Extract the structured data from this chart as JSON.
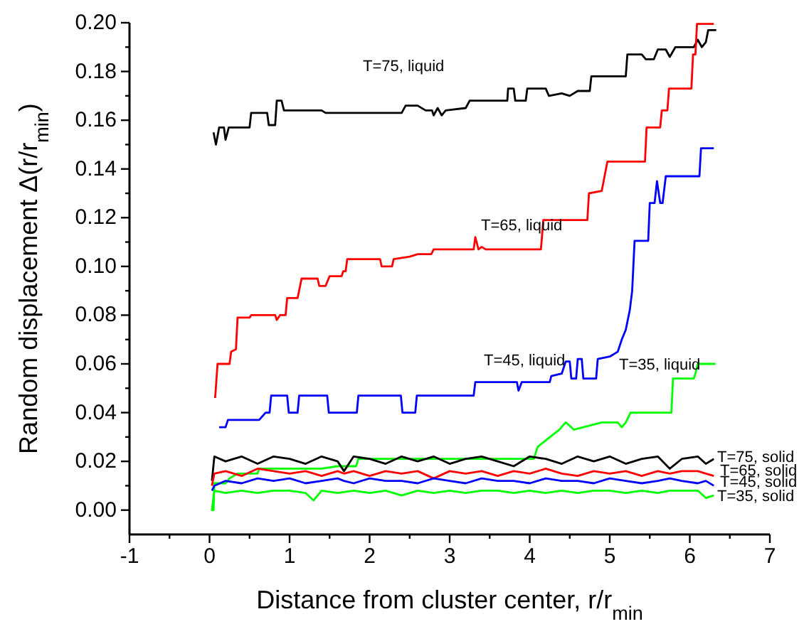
{
  "chart_data": {
    "type": "line",
    "xlabel": "Distance from cluster center, r/r$_{min}$",
    "ylabel": "Random displacement Δ(r/r$_{min}$)",
    "xlim": [
      -1,
      7
    ],
    "ylim": [
      -0.01,
      0.2
    ],
    "xticks": [
      -1,
      {
        "value": -0.5,
        "label": null
      },
      0,
      {
        "value": 0.5,
        "label": null
      },
      1,
      {
        "value": 1.5,
        "label": null
      },
      2,
      {
        "value": 2.5,
        "label": null
      },
      3,
      {
        "value": 3.5,
        "label": null
      },
      4,
      {
        "value": 4.5,
        "label": null
      },
      5,
      {
        "value": 5.5,
        "label": null
      },
      6,
      {
        "value": 6.5,
        "label": null
      },
      7
    ],
    "yticks": [
      {
        "value": 0,
        "label": "0.00"
      },
      {
        "value": 0.01,
        "label": null
      },
      {
        "value": 0.02,
        "label": "0.02"
      },
      {
        "value": 0.03,
        "label": null
      },
      {
        "value": 0.04,
        "label": "0.04"
      },
      {
        "value": 0.05,
        "label": null
      },
      {
        "value": 0.06,
        "label": "0.06"
      },
      {
        "value": 0.07,
        "label": null
      },
      {
        "value": 0.08,
        "label": "0.08"
      },
      {
        "value": 0.09,
        "label": null
      },
      {
        "value": 0.1,
        "label": "0.10"
      },
      {
        "value": 0.11,
        "label": null
      },
      {
        "value": 0.12,
        "label": "0.12"
      },
      {
        "value": 0.13,
        "label": null
      },
      {
        "value": 0.14,
        "label": "0.14"
      },
      {
        "value": 0.15,
        "label": null
      },
      {
        "value": 0.16,
        "label": "0.16"
      },
      {
        "value": 0.17,
        "label": null
      },
      {
        "value": 0.18,
        "label": "0.18"
      },
      {
        "value": 0.19,
        "label": null
      },
      {
        "value": 0.2,
        "label": "0.20"
      }
    ],
    "grid": false,
    "marker": "none",
    "line_style": "solid",
    "series": [
      {
        "name": "T=75, liquid",
        "color": "#000000",
        "x": [
          0.05,
          0.08,
          0.12,
          0.18,
          0.2,
          0.24,
          0.5,
          0.52,
          0.72,
          0.74,
          0.82,
          0.84,
          0.9,
          0.93,
          1.4,
          1.45,
          2.4,
          2.45,
          2.6,
          2.7,
          2.78,
          2.8,
          2.85,
          2.9,
          2.95,
          3.2,
          3.25,
          3.72,
          3.73,
          3.8,
          3.82,
          3.95,
          3.97,
          4.2,
          4.24,
          4.4,
          4.5,
          4.6,
          4.75,
          4.77,
          5.2,
          5.22,
          5.4,
          5.45,
          5.55,
          5.6,
          5.7,
          5.75,
          5.82,
          6.05,
          6.1,
          6.15,
          6.2,
          6.23,
          6.33
        ],
        "values": [
          0.155,
          0.15,
          0.157,
          0.157,
          0.152,
          0.157,
          0.157,
          0.163,
          0.163,
          0.158,
          0.158,
          0.168,
          0.168,
          0.164,
          0.164,
          0.163,
          0.163,
          0.166,
          0.166,
          0.164,
          0.164,
          0.162,
          0.165,
          0.162,
          0.164,
          0.165,
          0.168,
          0.168,
          0.173,
          0.173,
          0.168,
          0.168,
          0.173,
          0.173,
          0.17,
          0.171,
          0.17,
          0.172,
          0.172,
          0.178,
          0.178,
          0.187,
          0.187,
          0.185,
          0.185,
          0.189,
          0.189,
          0.186,
          0.19,
          0.19,
          0.193,
          0.19,
          0.192,
          0.197,
          0.197
        ]
      },
      {
        "name": "T=65, liquid",
        "color": "#ff0000",
        "x": [
          0.07,
          0.1,
          0.25,
          0.27,
          0.33,
          0.35,
          0.5,
          0.52,
          0.82,
          0.84,
          0.88,
          0.95,
          0.97,
          1.1,
          1.15,
          1.35,
          1.37,
          1.45,
          1.5,
          1.65,
          1.67,
          1.7,
          1.72,
          2.13,
          2.15,
          2.28,
          2.3,
          2.5,
          2.6,
          2.77,
          2.8,
          3.2,
          3.3,
          3.32,
          3.36,
          3.4,
          3.45,
          4.14,
          4.17,
          4.72,
          4.74,
          4.9,
          4.97,
          5.44,
          5.46,
          5.63,
          5.65,
          5.72,
          5.74,
          6.02,
          6.04,
          6.07,
          6.09,
          6.3
        ],
        "values": [
          0.046,
          0.06,
          0.06,
          0.065,
          0.066,
          0.079,
          0.079,
          0.08,
          0.08,
          0.078,
          0.08,
          0.08,
          0.087,
          0.087,
          0.095,
          0.095,
          0.092,
          0.092,
          0.096,
          0.096,
          0.098,
          0.098,
          0.103,
          0.103,
          0.1,
          0.1,
          0.103,
          0.104,
          0.105,
          0.105,
          0.107,
          0.107,
          0.107,
          0.112,
          0.107,
          0.108,
          0.107,
          0.107,
          0.119,
          0.119,
          0.13,
          0.131,
          0.143,
          0.143,
          0.157,
          0.157,
          0.164,
          0.164,
          0.173,
          0.173,
          0.187,
          0.187,
          0.1995,
          0.1995
        ]
      },
      {
        "name": "T=45, liquid",
        "color": "#0000ff",
        "x": [
          0.12,
          0.2,
          0.23,
          0.62,
          0.7,
          0.75,
          0.77,
          0.97,
          0.99,
          1.1,
          1.12,
          1.47,
          1.49,
          1.84,
          1.86,
          2.39,
          2.41,
          2.57,
          2.59,
          3.3,
          3.32,
          3.84,
          3.86,
          3.9,
          4.25,
          4.27,
          4.4,
          4.45,
          4.5,
          4.52,
          4.58,
          4.6,
          4.65,
          4.67,
          4.83,
          4.85,
          5.0,
          5.1,
          5.15,
          5.2,
          5.25,
          5.28,
          5.31,
          5.48,
          5.5,
          5.56,
          5.59,
          5.63,
          5.66,
          5.7,
          6.12,
          6.14,
          6.3
        ],
        "values": [
          0.034,
          0.034,
          0.037,
          0.037,
          0.04,
          0.04,
          0.047,
          0.047,
          0.04,
          0.04,
          0.047,
          0.047,
          0.04,
          0.04,
          0.047,
          0.047,
          0.04,
          0.04,
          0.047,
          0.047,
          0.0525,
          0.0525,
          0.049,
          0.0525,
          0.0525,
          0.055,
          0.056,
          0.061,
          0.061,
          0.054,
          0.054,
          0.062,
          0.062,
          0.054,
          0.054,
          0.062,
          0.063,
          0.065,
          0.07,
          0.074,
          0.082,
          0.09,
          0.1105,
          0.1105,
          0.126,
          0.126,
          0.135,
          0.126,
          0.126,
          0.137,
          0.137,
          0.1485,
          0.1485
        ]
      },
      {
        "name": "T=35, liquid",
        "color": "#00ff00",
        "x": [
          0.02,
          0.05,
          0.06,
          0.2,
          0.25,
          0.35,
          0.6,
          0.62,
          1.4,
          1.6,
          1.83,
          1.86,
          4.05,
          4.1,
          4.37,
          4.45,
          4.52,
          4.55,
          4.9,
          5.1,
          5.15,
          5.2,
          5.26,
          5.77,
          5.79,
          6.05,
          6.07,
          6.1,
          6.32
        ],
        "values": [
          0,
          0,
          0.011,
          0.011,
          0.013,
          0.015,
          0.015,
          0.017,
          0.017,
          0.018,
          0.018,
          0.021,
          0.021,
          0.026,
          0.033,
          0.036,
          0.034,
          0.033,
          0.036,
          0.036,
          0.034,
          0.036,
          0.04,
          0.04,
          0.054,
          0.054,
          0.056,
          0.06,
          0.06
        ]
      },
      {
        "name": "T=75, solid",
        "color": "#000000",
        "x": [
          0.03,
          0.06,
          0.2,
          0.4,
          0.6,
          0.8,
          1.0,
          1.2,
          1.4,
          1.6,
          1.68,
          1.8,
          2.0,
          2.2,
          2.4,
          2.6,
          2.8,
          3.0,
          3.2,
          3.4,
          3.6,
          3.8,
          4.0,
          4.2,
          4.4,
          4.6,
          4.8,
          5.0,
          5.2,
          5.4,
          5.6,
          5.75,
          5.9,
          6.1,
          6.2,
          6.3
        ],
        "values": [
          0.012,
          0.022,
          0.02,
          0.022,
          0.019,
          0.022,
          0.021,
          0.019,
          0.022,
          0.02,
          0.016,
          0.022,
          0.021,
          0.019,
          0.022,
          0.02,
          0.022,
          0.019,
          0.021,
          0.022,
          0.02,
          0.018,
          0.022,
          0.021,
          0.019,
          0.022,
          0.02,
          0.022,
          0.019,
          0.021,
          0.022,
          0.017,
          0.021,
          0.022,
          0.019,
          0.021
        ]
      },
      {
        "name": "T=65, solid",
        "color": "#ff0000",
        "x": [
          0.03,
          0.06,
          0.2,
          0.4,
          0.6,
          0.8,
          1.0,
          1.2,
          1.4,
          1.6,
          1.68,
          1.8,
          2.0,
          2.2,
          2.4,
          2.6,
          2.8,
          3.0,
          3.2,
          3.4,
          3.6,
          3.8,
          4.0,
          4.2,
          4.4,
          4.6,
          4.8,
          5.0,
          5.2,
          5.4,
          5.6,
          5.75,
          5.9,
          6.1,
          6.2,
          6.3
        ],
        "values": [
          0.01,
          0.015,
          0.016,
          0.014,
          0.017,
          0.016,
          0.015,
          0.016,
          0.014,
          0.016,
          0.015,
          0.016,
          0.014,
          0.016,
          0.015,
          0.016,
          0.013,
          0.016,
          0.015,
          0.016,
          0.014,
          0.016,
          0.015,
          0.017,
          0.015,
          0.014,
          0.016,
          0.015,
          0.016,
          0.014,
          0.016,
          0.015,
          0.016,
          0.016,
          0.015,
          0.014
        ]
      },
      {
        "name": "T=45, solid",
        "color": "#0000ff",
        "x": [
          0.03,
          0.06,
          0.2,
          0.4,
          0.6,
          0.8,
          1.0,
          1.2,
          1.4,
          1.6,
          1.68,
          1.8,
          2.0,
          2.2,
          2.4,
          2.6,
          2.8,
          3.0,
          3.2,
          3.4,
          3.6,
          3.8,
          4.0,
          4.2,
          4.4,
          4.6,
          4.8,
          5.0,
          5.2,
          5.4,
          5.6,
          5.75,
          5.9,
          6.1,
          6.2,
          6.3
        ],
        "values": [
          0.008,
          0.01,
          0.012,
          0.011,
          0.013,
          0.012,
          0.013,
          0.011,
          0.012,
          0.013,
          0.012,
          0.011,
          0.013,
          0.012,
          0.012,
          0.011,
          0.013,
          0.012,
          0.011,
          0.013,
          0.012,
          0.012,
          0.011,
          0.013,
          0.012,
          0.012,
          0.011,
          0.013,
          0.012,
          0.011,
          0.012,
          0.013,
          0.012,
          0.011,
          0.012,
          0.01
        ]
      },
      {
        "name": "T=35, solid",
        "color": "#00ff00",
        "x": [
          0.03,
          0.06,
          0.2,
          0.4,
          0.6,
          0.8,
          1.0,
          1.2,
          1.3,
          1.4,
          1.6,
          1.8,
          2.0,
          2.2,
          2.4,
          2.6,
          2.8,
          3.0,
          3.2,
          3.4,
          3.6,
          3.8,
          4.0,
          4.2,
          4.4,
          4.6,
          4.8,
          5.0,
          5.2,
          5.4,
          5.6,
          5.75,
          5.9,
          6.1,
          6.2,
          6.3
        ],
        "values": [
          0,
          0.008,
          0.007,
          0.008,
          0.007,
          0.008,
          0.008,
          0.007,
          0.004,
          0.008,
          0.007,
          0.008,
          0.007,
          0.008,
          0.006,
          0.008,
          0.007,
          0.008,
          0.007,
          0.008,
          0.008,
          0.007,
          0.008,
          0.007,
          0.008,
          0.007,
          0.008,
          0.008,
          0.007,
          0.008,
          0.007,
          0.008,
          0.008,
          0.008,
          0.005,
          0.006
        ]
      }
    ]
  }
}
